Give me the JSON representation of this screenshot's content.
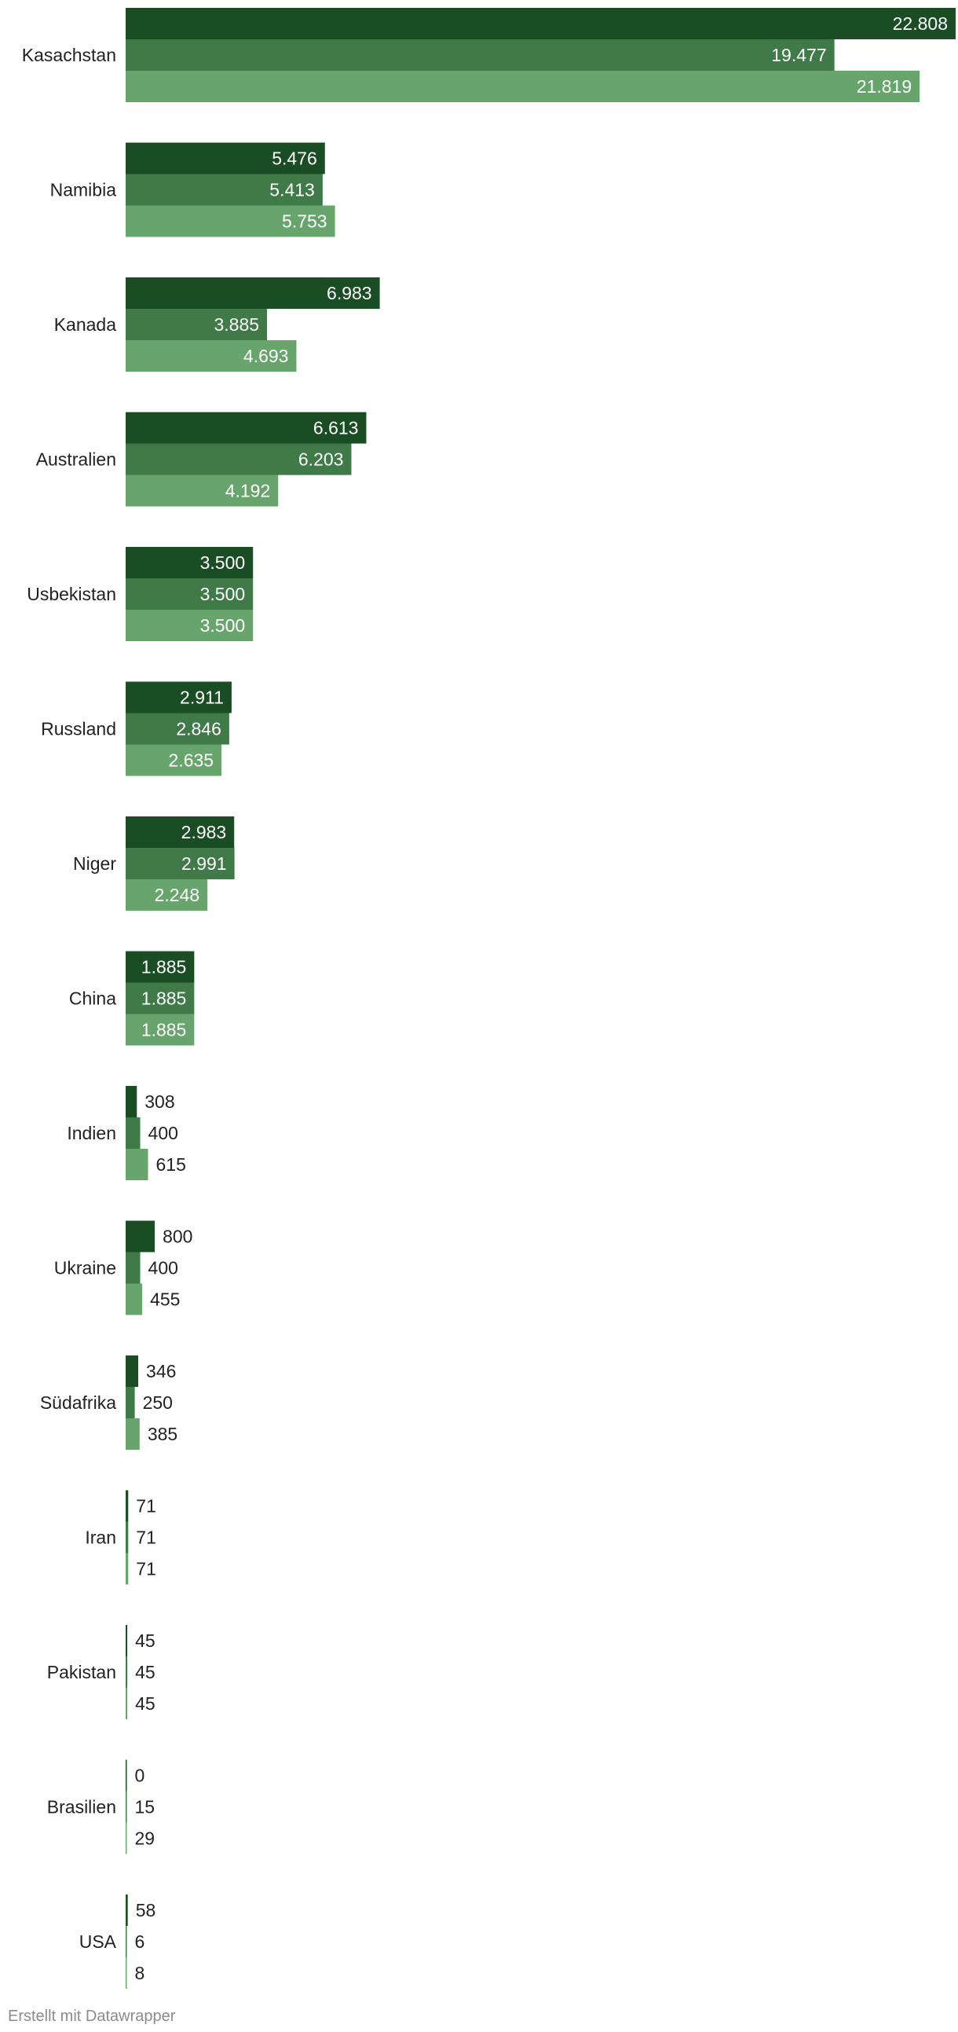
{
  "chart_data": {
    "type": "bar",
    "orientation": "horizontal",
    "categories": [
      "Kasachstan",
      "Namibia",
      "Kanada",
      "Australien",
      "Usbekistan",
      "Russland",
      "Niger",
      "China",
      "Indien",
      "Ukraine",
      "Südafrika",
      "Iran",
      "Pakistan",
      "Brasilien",
      "USA"
    ],
    "series": [
      {
        "values": [
          22808,
          5476,
          6983,
          6613,
          3500,
          2911,
          2983,
          1885,
          308,
          800,
          346,
          71,
          45,
          0,
          58
        ],
        "labels": [
          "22.808",
          "5.476",
          "6.983",
          "6.613",
          "3.500",
          "2.911",
          "2.983",
          "1.885",
          "308",
          "800",
          "346",
          "71",
          "45",
          "0",
          "58"
        ]
      },
      {
        "values": [
          19477,
          5413,
          3885,
          6203,
          3500,
          2846,
          2991,
          1885,
          400,
          400,
          250,
          71,
          45,
          15,
          6
        ],
        "labels": [
          "19.477",
          "5.413",
          "3.885",
          "6.203",
          "3.500",
          "2.846",
          "2.991",
          "1.885",
          "400",
          "400",
          "250",
          "71",
          "45",
          "15",
          "6"
        ]
      },
      {
        "values": [
          21819,
          5753,
          4693,
          4192,
          3500,
          2635,
          2248,
          1885,
          615,
          455,
          385,
          71,
          45,
          29,
          8
        ],
        "labels": [
          "21.819",
          "5.753",
          "4.693",
          "4.192",
          "3.500",
          "2.635",
          "2.248",
          "1.885",
          "615",
          "455",
          "385",
          "71",
          "45",
          "29",
          "8"
        ]
      }
    ],
    "xlim": [
      0,
      22808
    ],
    "grid": false,
    "legend": "none",
    "colors": [
      "#1b4d24",
      "#3f7a48",
      "#68a56c"
    ],
    "label_color_inside": "#ffffff",
    "label_color_outside": "#222222"
  },
  "footer": {
    "credit": "Erstellt mit Datawrapper"
  }
}
